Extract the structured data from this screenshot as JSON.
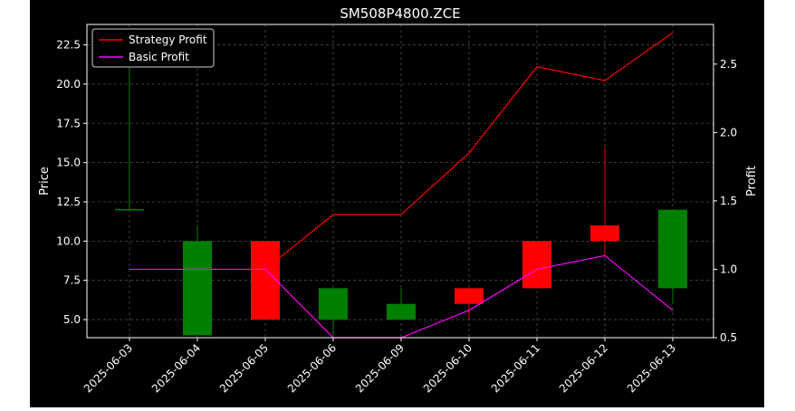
{
  "chart_data": {
    "type": "candlestick",
    "title": "SM508P4800.ZCE",
    "xlabel": "",
    "ylabel": "Price",
    "ylabel_right": "Profit",
    "grid": true,
    "legend_position": "top-left",
    "dates": [
      "2025-06-03",
      "2025-06-04",
      "2025-06-05",
      "2025-06-06",
      "2025-06-09",
      "2025-06-10",
      "2025-06-11",
      "2025-06-12",
      "2025-06-13"
    ],
    "candles": [
      {
        "open": 12.0,
        "high": 22.5,
        "low": 12.0,
        "close": 12.0
      },
      {
        "open": 4.0,
        "high": 11.0,
        "low": 4.0,
        "close": 10.0
      },
      {
        "open": 10.0,
        "high": 10.0,
        "low": 5.0,
        "close": 5.0
      },
      {
        "open": 5.0,
        "high": 7.0,
        "low": 4.0,
        "close": 7.0
      },
      {
        "open": 5.0,
        "high": 7.0,
        "low": 5.0,
        "close": 6.0
      },
      {
        "open": 7.0,
        "high": 7.0,
        "low": 5.0,
        "close": 6.0
      },
      {
        "open": 10.0,
        "high": 10.0,
        "low": 7.0,
        "close": 7.0
      },
      {
        "open": 11.0,
        "high": 16.0,
        "low": 9.0,
        "close": 10.0
      },
      {
        "open": 7.0,
        "high": 12.0,
        "low": 6.0,
        "close": 12.0
      }
    ],
    "series": [
      {
        "name": "Strategy Profit",
        "axis": "right",
        "color": "#ff0000",
        "values": [
          null,
          null,
          1.0,
          1.4,
          1.4,
          1.85,
          2.48,
          2.38,
          2.73
        ]
      },
      {
        "name": "Basic Profit",
        "axis": "right",
        "color": "#ff00ff",
        "values": [
          1.0,
          1.0,
          1.0,
          0.5,
          0.5,
          0.7,
          1.0,
          1.1,
          0.7
        ]
      }
    ],
    "y_left": {
      "lim": [
        3.85,
        23.8
      ],
      "ticks": [
        "5.0",
        "7.5",
        "10.0",
        "12.5",
        "15.0",
        "17.5",
        "20.0",
        "22.5"
      ]
    },
    "y_right": {
      "lim": [
        0.5,
        2.79
      ],
      "ticks": [
        "0.5",
        "1.0",
        "1.5",
        "2.0",
        "2.5"
      ]
    },
    "colors": {
      "up": "#008000",
      "down": "#ff0000",
      "background": "#000000",
      "grid": "#808080"
    }
  }
}
